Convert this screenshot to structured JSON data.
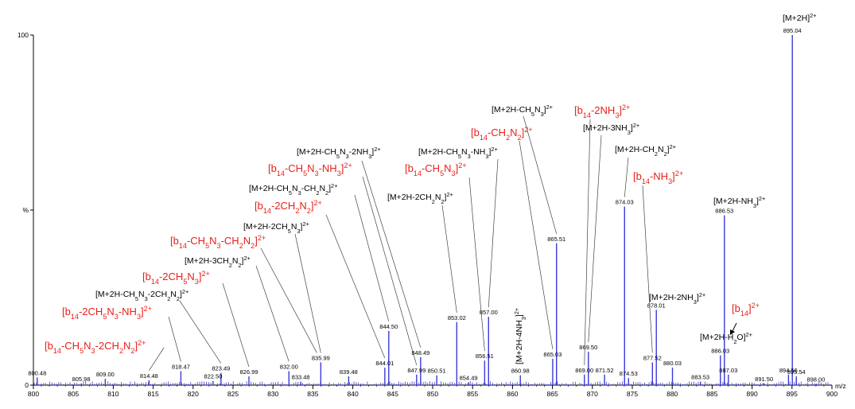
{
  "chart_data": {
    "type": "bar",
    "xlabel": "m/z",
    "ylabel": "",
    "xlim": [
      800,
      900
    ],
    "ylim": [
      0,
      100
    ],
    "x_ticks": [
      800,
      805,
      810,
      815,
      820,
      825,
      830,
      835,
      840,
      845,
      850,
      855,
      860,
      865,
      870,
      875,
      880,
      885,
      890,
      895,
      900
    ],
    "y_ticks": [
      {
        "value": 100,
        "label": "100"
      },
      {
        "value": 50,
        "label": "%"
      },
      {
        "value": 0,
        "label": "0"
      }
    ],
    "colors": {
      "peak": "#3b3bd6",
      "axis": "#000000",
      "red_label": "#e8201a",
      "black_label": "#000000"
    },
    "peaks": [
      {
        "mz": 800.48,
        "intensity": 2.2,
        "label": "800.48"
      },
      {
        "mz": 805.98,
        "intensity": 0.5,
        "label": "805.98"
      },
      {
        "mz": 809.0,
        "intensity": 1.8,
        "label": "809.00"
      },
      {
        "mz": 814.48,
        "intensity": 1.4,
        "label": "814.48"
      },
      {
        "mz": 818.47,
        "intensity": 4.0,
        "label": "818.47"
      },
      {
        "mz": 822.5,
        "intensity": 1.2,
        "label": "822.50"
      },
      {
        "mz": 823.49,
        "intensity": 3.5,
        "label": "823.49"
      },
      {
        "mz": 826.99,
        "intensity": 2.5,
        "label": "826.99"
      },
      {
        "mz": 832.0,
        "intensity": 4.0,
        "label": "832.00"
      },
      {
        "mz": 833.48,
        "intensity": 1.0,
        "label": "833.48"
      },
      {
        "mz": 835.99,
        "intensity": 6.5,
        "label": "835.99"
      },
      {
        "mz": 839.48,
        "intensity": 2.5,
        "label": "839.48"
      },
      {
        "mz": 844.01,
        "intensity": 5.0,
        "label": "844.01"
      },
      {
        "mz": 844.5,
        "intensity": 15.5,
        "label": "844.50"
      },
      {
        "mz": 847.99,
        "intensity": 3.0,
        "label": "847.99"
      },
      {
        "mz": 848.49,
        "intensity": 8.0,
        "label": "848.49"
      },
      {
        "mz": 850.51,
        "intensity": 2.8,
        "label": "850.51"
      },
      {
        "mz": 853.02,
        "intensity": 18.0,
        "label": "853.02"
      },
      {
        "mz": 854.49,
        "intensity": 0.8,
        "label": "854.49"
      },
      {
        "mz": 856.51,
        "intensity": 7.0,
        "label": "856.51"
      },
      {
        "mz": 857.0,
        "intensity": 19.5,
        "label": "857.00"
      },
      {
        "mz": 860.98,
        "intensity": 2.8,
        "label": "860.98"
      },
      {
        "mz": 865.03,
        "intensity": 7.5,
        "label": "865.03"
      },
      {
        "mz": 865.51,
        "intensity": 40.5,
        "label": "865.51"
      },
      {
        "mz": 869.0,
        "intensity": 3.0,
        "label": "869.00"
      },
      {
        "mz": 869.5,
        "intensity": 9.5,
        "label": "869.50"
      },
      {
        "mz": 871.52,
        "intensity": 3.0,
        "label": "871.52"
      },
      {
        "mz": 874.03,
        "intensity": 51.0,
        "label": "874.03"
      },
      {
        "mz": 874.53,
        "intensity": 2.0,
        "label": "874.53"
      },
      {
        "mz": 877.52,
        "intensity": 6.5,
        "label": "877.52"
      },
      {
        "mz": 878.01,
        "intensity": 21.5,
        "label": "878.01"
      },
      {
        "mz": 880.03,
        "intensity": 5.0,
        "label": "880.03"
      },
      {
        "mz": 883.53,
        "intensity": 1.0,
        "label": "883.53"
      },
      {
        "mz": 886.03,
        "intensity": 8.5,
        "label": "886.03"
      },
      {
        "mz": 886.53,
        "intensity": 48.5,
        "label": "886.53"
      },
      {
        "mz": 887.03,
        "intensity": 3.0,
        "label": "887.03"
      },
      {
        "mz": 891.5,
        "intensity": 0.5,
        "label": "891.50"
      },
      {
        "mz": 894.56,
        "intensity": 3.0,
        "label": "894.56"
      },
      {
        "mz": 895.04,
        "intensity": 100,
        "label": "895.04"
      },
      {
        "mz": 895.54,
        "intensity": 2.5,
        "label": "895.54"
      },
      {
        "mz": 898.0,
        "intensity": 0.3,
        "label": "898.00"
      }
    ],
    "annotations": [
      {
        "color": "black",
        "parts": [
          [
            "[M+2H]",
            ""
          ],
          [
            "2+",
            "sup"
          ]
        ],
        "mz": 895.04
      },
      {
        "color": "black",
        "parts": [
          [
            "[M+2H-CH",
            ""
          ],
          [
            "5",
            "sub"
          ],
          [
            "N",
            ""
          ],
          [
            "3",
            "sub"
          ],
          [
            "]",
            ""
          ],
          [
            "2+",
            "sup"
          ]
        ],
        "mz": 865.51
      },
      {
        "color": "red",
        "parts": [
          [
            "[b",
            ""
          ],
          [
            "14",
            "sub"
          ],
          [
            "-2NH",
            ""
          ],
          [
            "3",
            "sub"
          ],
          [
            "]",
            ""
          ],
          [
            "2+",
            "sup"
          ]
        ],
        "mz": 869.0
      },
      {
        "color": "black",
        "parts": [
          [
            "[M+2H-3NH",
            ""
          ],
          [
            "3",
            "sub"
          ],
          [
            "]",
            ""
          ],
          [
            "2+",
            "sup"
          ]
        ],
        "mz": 869.5
      },
      {
        "color": "red",
        "parts": [
          [
            "[b",
            ""
          ],
          [
            "14",
            "sub"
          ],
          [
            "-CH",
            ""
          ],
          [
            "2",
            "sub"
          ],
          [
            "N",
            ""
          ],
          [
            "2",
            "sub"
          ],
          [
            "]",
            ""
          ],
          [
            "2+",
            "sup"
          ]
        ],
        "mz": 865.03
      },
      {
        "color": "black",
        "parts": [
          [
            "[M+2H-CH",
            ""
          ],
          [
            "2",
            "sub"
          ],
          [
            "N",
            ""
          ],
          [
            "2",
            "sub"
          ],
          [
            "]",
            ""
          ],
          [
            "2+",
            "sup"
          ]
        ],
        "mz": 874.03
      },
      {
        "color": "black",
        "parts": [
          [
            "[M+2H-CH",
            ""
          ],
          [
            "5",
            "sub"
          ],
          [
            "N",
            ""
          ],
          [
            "3",
            "sub"
          ],
          [
            "-2NH",
            ""
          ],
          [
            "3",
            "sub"
          ],
          [
            "]",
            ""
          ],
          [
            "2+",
            "sup"
          ]
        ],
        "mz": 848.49
      },
      {
        "color": "black",
        "parts": [
          [
            "[M+2H-CH",
            ""
          ],
          [
            "5",
            "sub"
          ],
          [
            "N",
            ""
          ],
          [
            "3",
            "sub"
          ],
          [
            "-NH",
            ""
          ],
          [
            "3",
            "sub"
          ],
          [
            "]",
            ""
          ],
          [
            "2+",
            "sup"
          ]
        ],
        "mz": 857.0
      },
      {
        "color": "red",
        "parts": [
          [
            "[b",
            ""
          ],
          [
            "14",
            "sub"
          ],
          [
            "-CH",
            ""
          ],
          [
            "5",
            "sub"
          ],
          [
            "N",
            ""
          ],
          [
            "3",
            "sub"
          ],
          [
            "-NH",
            ""
          ],
          [
            "3",
            "sub"
          ],
          [
            "]",
            ""
          ],
          [
            "2+",
            "sup"
          ]
        ],
        "mz": 847.99
      },
      {
        "color": "red",
        "parts": [
          [
            "[b",
            ""
          ],
          [
            "14",
            "sub"
          ],
          [
            "-CH",
            ""
          ],
          [
            "5",
            "sub"
          ],
          [
            "N",
            ""
          ],
          [
            "3",
            "sub"
          ],
          [
            "]",
            ""
          ],
          [
            "2+",
            "sup"
          ]
        ],
        "mz": 856.51
      },
      {
        "color": "red",
        "parts": [
          [
            "[b",
            ""
          ],
          [
            "14",
            "sub"
          ],
          [
            "-NH",
            ""
          ],
          [
            "3",
            "sub"
          ],
          [
            "]",
            ""
          ],
          [
            "2+",
            "sup"
          ]
        ],
        "mz": 877.52
      },
      {
        "color": "black",
        "parts": [
          [
            "[M+2H-CH",
            ""
          ],
          [
            "5",
            "sub"
          ],
          [
            "N",
            ""
          ],
          [
            "3",
            "sub"
          ],
          [
            "-CH",
            ""
          ],
          [
            "2",
            "sub"
          ],
          [
            "N",
            ""
          ],
          [
            "2",
            "sub"
          ],
          [
            "]",
            ""
          ],
          [
            "2+",
            "sup"
          ]
        ],
        "mz": 844.5
      },
      {
        "color": "black",
        "parts": [
          [
            "[M+2H-2CH",
            ""
          ],
          [
            "2",
            "sub"
          ],
          [
            "N",
            ""
          ],
          [
            "2",
            "sub"
          ],
          [
            "]",
            ""
          ],
          [
            "2+",
            "sup"
          ]
        ],
        "mz": 853.02
      },
      {
        "color": "red",
        "parts": [
          [
            "[b",
            ""
          ],
          [
            "14",
            "sub"
          ],
          [
            "-2CH",
            ""
          ],
          [
            "2",
            "sub"
          ],
          [
            "N",
            ""
          ],
          [
            "2",
            "sub"
          ],
          [
            "]",
            ""
          ],
          [
            "2+",
            "sup"
          ]
        ],
        "mz": 844.01
      },
      {
        "color": "black",
        "parts": [
          [
            "[M+2H-NH",
            ""
          ],
          [
            "3",
            "sub"
          ],
          [
            "]",
            ""
          ],
          [
            "2+",
            "sup"
          ]
        ],
        "mz": 886.53
      },
      {
        "color": "black",
        "parts": [
          [
            "[M+2H-2CH",
            ""
          ],
          [
            "5",
            "sub"
          ],
          [
            "N",
            ""
          ],
          [
            "3",
            "sub"
          ],
          [
            "]",
            ""
          ],
          [
            "2+",
            "sup"
          ]
        ],
        "mz": 835.99
      },
      {
        "color": "red",
        "parts": [
          [
            "[b",
            ""
          ],
          [
            "14",
            "sub"
          ],
          [
            "-CH",
            ""
          ],
          [
            "5",
            "sub"
          ],
          [
            "N",
            ""
          ],
          [
            "3",
            "sub"
          ],
          [
            "-CH",
            ""
          ],
          [
            "2",
            "sub"
          ],
          [
            "N",
            ""
          ],
          [
            "2",
            "sub"
          ],
          [
            "]",
            ""
          ],
          [
            "2+",
            "sup"
          ]
        ],
        "mz": 835.5
      },
      {
        "color": "black",
        "parts": [
          [
            "[M+2H-3CH",
            ""
          ],
          [
            "2",
            "sub"
          ],
          [
            "N",
            ""
          ],
          [
            "2",
            "sub"
          ],
          [
            "]",
            ""
          ],
          [
            "2+",
            "sup"
          ]
        ],
        "mz": 832.0
      },
      {
        "color": "red",
        "parts": [
          [
            "[b",
            ""
          ],
          [
            "14",
            "sub"
          ],
          [
            "-2CH",
            ""
          ],
          [
            "5",
            "sub"
          ],
          [
            "N",
            ""
          ],
          [
            "3",
            "sub"
          ],
          [
            "]",
            ""
          ],
          [
            "2+",
            "sup"
          ]
        ],
        "mz": 826.99
      },
      {
        "color": "black",
        "parts": [
          [
            "[M+2H-CH",
            ""
          ],
          [
            "5",
            "sub"
          ],
          [
            "N",
            ""
          ],
          [
            "3",
            "sub"
          ],
          [
            "-2CH",
            ""
          ],
          [
            "2",
            "sub"
          ],
          [
            "N",
            ""
          ],
          [
            "2",
            "sub"
          ],
          [
            "]",
            ""
          ],
          [
            "2+",
            "sup"
          ]
        ],
        "mz": 823.49
      },
      {
        "color": "red",
        "parts": [
          [
            "[b",
            ""
          ],
          [
            "14",
            "sub"
          ],
          [
            "-2CH",
            ""
          ],
          [
            "5",
            "sub"
          ],
          [
            "N",
            ""
          ],
          [
            "3",
            "sub"
          ],
          [
            "-NH",
            ""
          ],
          [
            "3",
            "sub"
          ],
          [
            "]",
            ""
          ],
          [
            "2+",
            "sup"
          ]
        ],
        "mz": 818.47
      },
      {
        "color": "red",
        "parts": [
          [
            "[b",
            ""
          ],
          [
            "14",
            "sub"
          ],
          [
            "-CH",
            ""
          ],
          [
            "5",
            "sub"
          ],
          [
            "N",
            ""
          ],
          [
            "3",
            "sub"
          ],
          [
            "-2CH",
            ""
          ],
          [
            "2",
            "sub"
          ],
          [
            "N",
            ""
          ],
          [
            "2",
            "sub"
          ],
          [
            "]",
            ""
          ],
          [
            "2+",
            "sup"
          ]
        ],
        "mz": 814.48
      },
      {
        "color": "red",
        "parts": [
          [
            "[b",
            ""
          ],
          [
            "14",
            "sub"
          ],
          [
            "]",
            ""
          ],
          [
            "2+",
            "sup"
          ]
        ],
        "mz": 887.03
      },
      {
        "color": "black",
        "parts": [
          [
            "[M+2H-H",
            ""
          ],
          [
            "2",
            "sub"
          ],
          [
            "O]",
            ""
          ],
          [
            "2+",
            "sup"
          ]
        ],
        "mz": 886.03
      },
      {
        "color": "black",
        "parts": [
          [
            "[M+2H-2NH",
            ""
          ],
          [
            "3",
            "sub"
          ],
          [
            "]",
            ""
          ],
          [
            "2+",
            "sup"
          ]
        ],
        "mz": 878.01
      },
      {
        "color": "black",
        "parts": [
          [
            "[M+2H-4NH",
            ""
          ],
          [
            "3",
            "sub"
          ],
          [
            "]",
            ""
          ],
          [
            "2+",
            "sup"
          ]
        ],
        "mz": 860.98,
        "rotated": true
      }
    ]
  }
}
